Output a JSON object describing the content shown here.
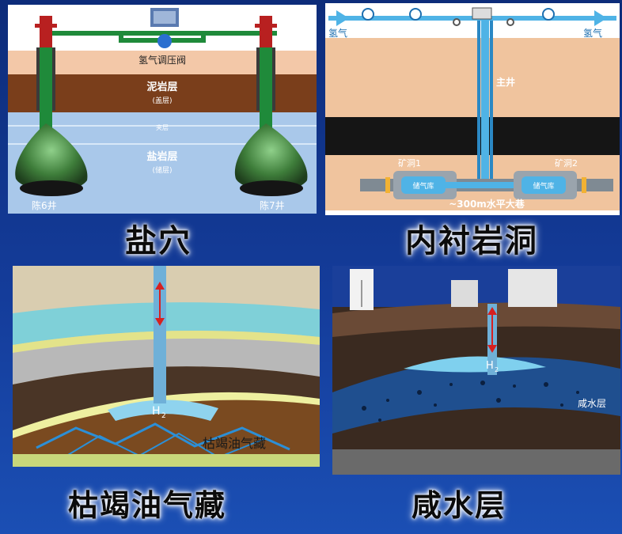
{
  "colors": {
    "background": "#143c9a",
    "pipe_green": "#1f8a3a",
    "pipe_blue": "#4fb3e6",
    "salt": "#3f7a3a"
  },
  "panels": [
    {
      "caption": "盐穴",
      "labels": {
        "regulator": "氢气调压阀",
        "mudstone": "泥岩层",
        "mudstone_sub": "(盖层)",
        "interlayer": "夹层",
        "salt": "盐岩层",
        "salt_sub": "(储层)",
        "well_left": "陈6井",
        "well_right": "陈7井"
      }
    },
    {
      "caption": "内衬岩洞",
      "labels": {
        "h2_in": "氢气",
        "h2_out": "氢气",
        "main_shaft": "主井",
        "tunnel1": "矿洞1",
        "tunnel2": "矿洞2",
        "store1": "储气库",
        "store2": "储气库",
        "gallery": "~300m水平大巷"
      }
    },
    {
      "caption": "枯竭油气藏",
      "labels": {
        "gas": "H",
        "gas_sub": "2",
        "reservoir": "枯竭油气藏"
      }
    },
    {
      "caption": "咸水层",
      "labels": {
        "gas": "H",
        "gas_sub": "2",
        "aquifer": "咸水层"
      }
    }
  ]
}
